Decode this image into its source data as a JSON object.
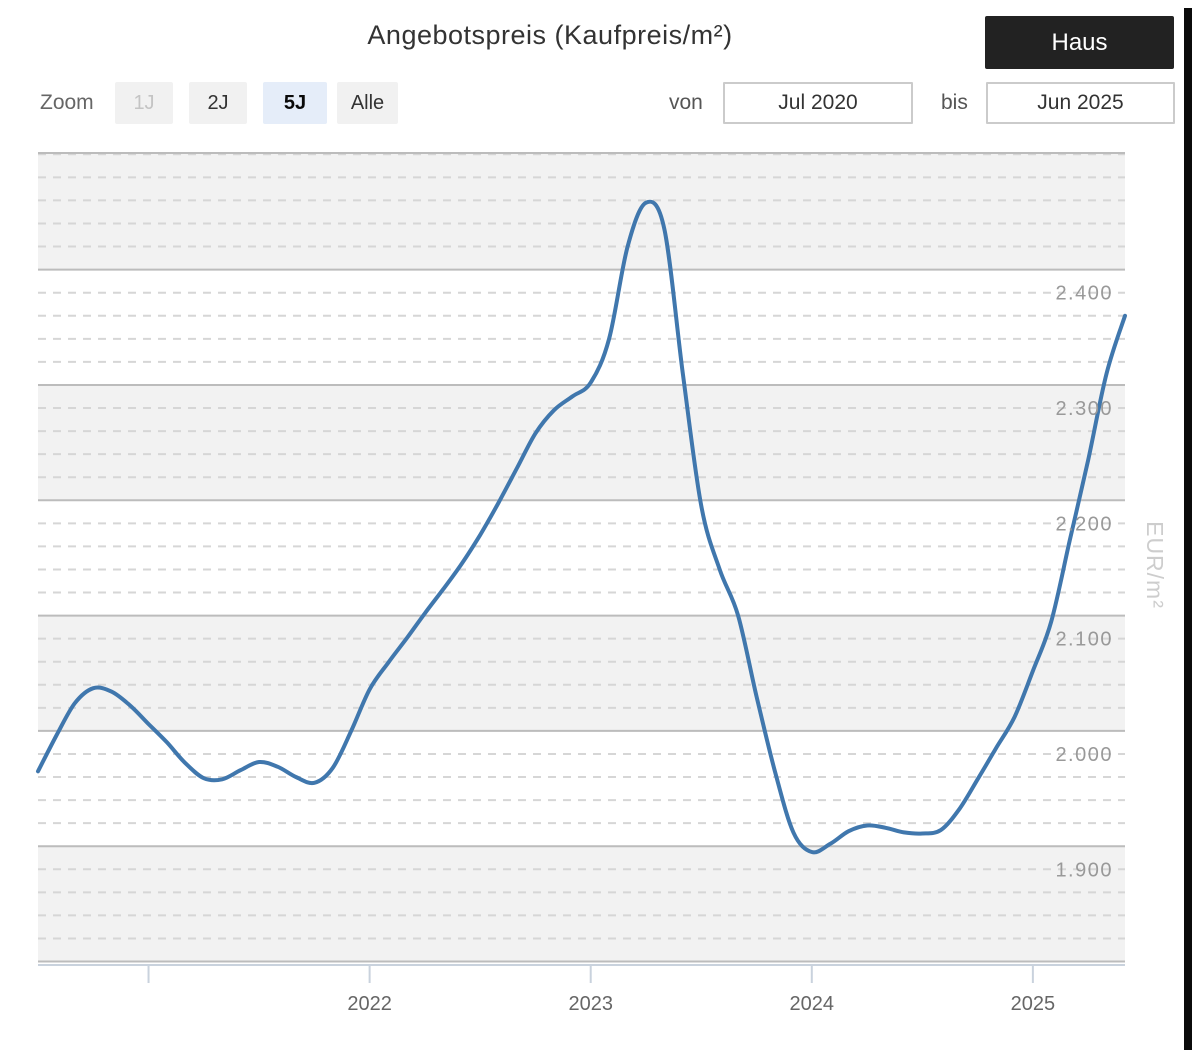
{
  "header": {
    "title": "Angebotspreis (Kaufpreis/m²)",
    "haus_label": "Haus"
  },
  "controls": {
    "zoom_label": "Zoom",
    "zoom_buttons": [
      {
        "label": "1J",
        "state": "disabled"
      },
      {
        "label": "2J",
        "state": "normal"
      },
      {
        "label": "5J",
        "state": "active"
      },
      {
        "label": "Alle",
        "state": "normal"
      }
    ],
    "von_label": "von",
    "von_value": "Jul 2020",
    "bis_label": "bis",
    "bis_value": "Jun 2025"
  },
  "chart_data": {
    "type": "line",
    "title": "Angebotspreis (Kaufpreis/m²)",
    "ylabel": "EUR/m²",
    "x_start": "Jul 2020",
    "x_end": "Jun 2025",
    "x_interval": "monthly",
    "ylim": [
      1817,
      2522
    ],
    "grid": {
      "major_interval": 100,
      "minor_interval": 20,
      "alternate_bands": true
    },
    "series": [
      {
        "name": "Angebotspreis (Kaufpreis/m²)",
        "color": "#4077ad",
        "values": [
          1985,
          2016,
          2044,
          2057,
          2054,
          2042,
          2026,
          2010,
          1992,
          1979,
          1978,
          1986,
          1993,
          1989,
          1980,
          1975,
          1988,
          2020,
          2056,
          2079,
          2100,
          2122,
          2143,
          2165,
          2190,
          2218,
          2248,
          2278,
          2298,
          2310,
          2322,
          2360,
          2440,
          2478,
          2455,
          2330,
          2215,
          2160,
          2120,
          2050,
          1985,
          1932,
          1915,
          1922,
          1933,
          1938,
          1936,
          1932,
          1931,
          1934,
          1952,
          1978,
          2005,
          2032,
          2072,
          2115,
          2185,
          2255,
          2330,
          2380
        ]
      }
    ],
    "yticks": [
      {
        "value": 2400,
        "label": "2.400"
      },
      {
        "value": 2300,
        "label": "2.300"
      },
      {
        "value": 2200,
        "label": "2.200"
      },
      {
        "value": 2100,
        "label": "2.100"
      },
      {
        "value": 2000,
        "label": "2.000"
      },
      {
        "value": 1900,
        "label": "1.900"
      }
    ],
    "xticks": [
      {
        "month_index": 6,
        "label": ""
      },
      {
        "month_index": 18,
        "label": "2022"
      },
      {
        "month_index": 30,
        "label": "2023"
      },
      {
        "month_index": 42,
        "label": "2024"
      },
      {
        "month_index": 54,
        "label": "2025"
      }
    ],
    "colors": {
      "band_gray": "#f2f2f2",
      "grid_major": "#bcbcbc",
      "grid_minor": "#d6d6d6",
      "axis_line": "#c9d2dd",
      "y_label": "#999999",
      "x_label": "#666666",
      "axis_title": "#cdcdcd"
    }
  }
}
